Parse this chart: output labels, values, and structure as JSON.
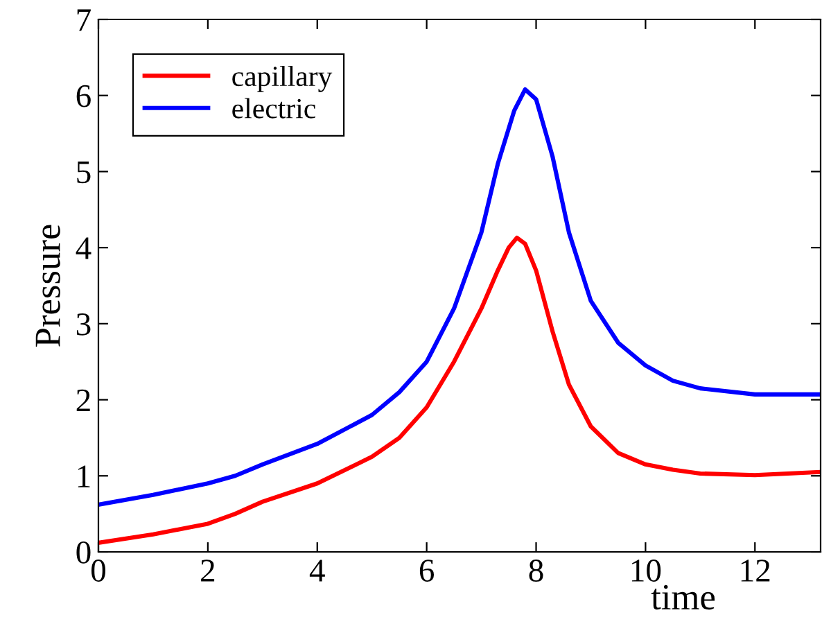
{
  "chart_data": {
    "type": "line",
    "xlabel": "time",
    "ylabel": "Pressure",
    "xlim": [
      0,
      13.2
    ],
    "ylim": [
      0,
      7
    ],
    "xticks": [
      0,
      2,
      4,
      6,
      8,
      10,
      12
    ],
    "yticks": [
      0,
      1,
      2,
      3,
      4,
      5,
      6,
      7
    ],
    "grid": false,
    "legend": "top left",
    "line_style": "solid",
    "series": [
      {
        "name": "capillary",
        "color": "#ff0000",
        "x": [
          0,
          1,
          2,
          2.5,
          3,
          4,
          5,
          5.5,
          6,
          6.5,
          7,
          7.3,
          7.5,
          7.65,
          7.8,
          8,
          8.3,
          8.6,
          9,
          9.5,
          10,
          10.5,
          11,
          12,
          13.2
        ],
        "values": [
          0.12,
          0.23,
          0.37,
          0.5,
          0.66,
          0.9,
          1.25,
          1.5,
          1.9,
          2.5,
          3.2,
          3.7,
          4.0,
          4.13,
          4.05,
          3.7,
          2.9,
          2.2,
          1.65,
          1.3,
          1.15,
          1.08,
          1.03,
          1.01,
          1.05
        ]
      },
      {
        "name": "electric",
        "color": "#0000ff",
        "x": [
          0,
          1,
          2,
          2.5,
          3,
          4,
          5,
          5.5,
          6,
          6.5,
          7,
          7.3,
          7.6,
          7.8,
          8,
          8.3,
          8.6,
          9,
          9.5,
          10,
          10.5,
          11,
          12,
          13.2
        ],
        "values": [
          0.62,
          0.75,
          0.9,
          1.0,
          1.15,
          1.42,
          1.8,
          2.1,
          2.5,
          3.2,
          4.2,
          5.1,
          5.8,
          6.08,
          5.95,
          5.2,
          4.2,
          3.3,
          2.75,
          2.45,
          2.25,
          2.15,
          2.07,
          2.07
        ]
      }
    ]
  }
}
